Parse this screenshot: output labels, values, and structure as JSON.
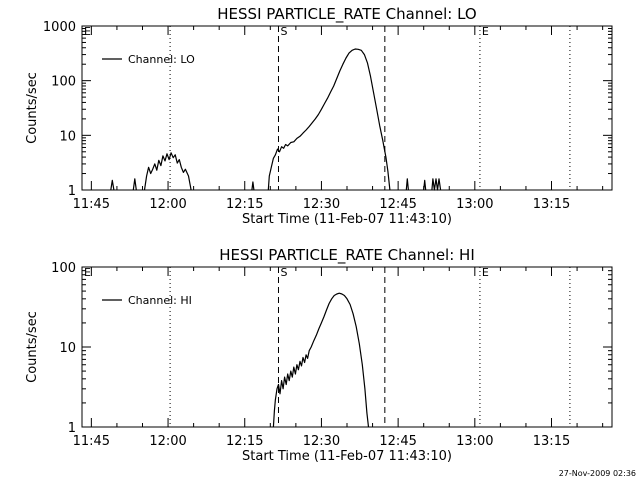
{
  "footer": {
    "timestamp": "27-Nov-2009 02:36"
  },
  "chart_data": [
    {
      "type": "line",
      "title": "HESSI PARTICLE_RATE Channel: LO",
      "xlabel": "Start Time (11-Feb-07 11:43:10)",
      "ylabel": "Counts/sec",
      "y_scale": "log",
      "ylim": [
        1,
        1000
      ],
      "y_ticks": [
        1,
        10,
        100,
        1000
      ],
      "y_tick_labels": [
        "1",
        "10",
        "100",
        "1000"
      ],
      "x_tick_labels": [
        "11:45",
        "12:00",
        "12:15",
        "12:30",
        "12:45",
        "13:00",
        "13:15"
      ],
      "x_tick_minutes": [
        105,
        120,
        135,
        150,
        165,
        180,
        195
      ],
      "xlim_minutes": [
        103.17,
        206.83
      ],
      "legend": {
        "entry": "Channel: LO",
        "placement": "top-left"
      },
      "markers": [
        {
          "label": "E",
          "minute": 103.17,
          "style": "dotted"
        },
        {
          "label": "",
          "minute": 120.4,
          "style": "dotted"
        },
        {
          "label": "S",
          "minute": 141.6,
          "style": "dashed"
        },
        {
          "label": "",
          "minute": 162.4,
          "style": "dashed"
        },
        {
          "label": "E",
          "minute": 181.0,
          "style": "dotted"
        },
        {
          "label": "",
          "minute": 198.6,
          "style": "dotted"
        }
      ],
      "segments": [
        [
          [
            108.8,
            1
          ],
          [
            109.1,
            1.5
          ],
          [
            109.4,
            1
          ]
        ],
        [
          [
            113.2,
            1
          ],
          [
            113.5,
            1.6
          ],
          [
            113.8,
            1
          ]
        ],
        [
          [
            115.4,
            1
          ],
          [
            115.8,
            1.8
          ],
          [
            116.2,
            2.6
          ],
          [
            116.6,
            2.0
          ],
          [
            117.0,
            2.4
          ],
          [
            117.4,
            3.0
          ],
          [
            117.8,
            2.3
          ],
          [
            118.2,
            3.5
          ],
          [
            118.6,
            2.8
          ],
          [
            119.0,
            4.2
          ],
          [
            119.4,
            3.4
          ],
          [
            119.8,
            4.6
          ],
          [
            120.2,
            3.6
          ],
          [
            120.6,
            4.8
          ],
          [
            121.0,
            3.9
          ],
          [
            121.4,
            4.4
          ],
          [
            121.8,
            3.1
          ],
          [
            122.2,
            3.6
          ],
          [
            122.6,
            2.6
          ],
          [
            123.0,
            2.1
          ],
          [
            123.4,
            2.4
          ],
          [
            124.0,
            1.8
          ],
          [
            124.5,
            1
          ]
        ],
        [
          [
            136.4,
            1
          ],
          [
            136.6,
            1.4
          ],
          [
            136.8,
            1
          ]
        ],
        [
          [
            139.6,
            1
          ],
          [
            139.8,
            1.8
          ],
          [
            140.2,
            2.6
          ],
          [
            140.6,
            3.8
          ],
          [
            141.0,
            4.4
          ],
          [
            141.4,
            5.6
          ],
          [
            141.8,
            5.0
          ],
          [
            142.2,
            6.2
          ],
          [
            142.6,
            5.8
          ],
          [
            143.0,
            6.8
          ],
          [
            143.4,
            6.4
          ],
          [
            144.0,
            7.4
          ],
          [
            144.6,
            7.6
          ],
          [
            145.2,
            8.8
          ],
          [
            145.8,
            9.6
          ],
          [
            146.4,
            11
          ],
          [
            147.0,
            12.5
          ],
          [
            147.6,
            14.5
          ],
          [
            148.2,
            17
          ],
          [
            148.8,
            20
          ],
          [
            149.4,
            24
          ],
          [
            150.0,
            30
          ],
          [
            150.6,
            38
          ],
          [
            151.2,
            48
          ],
          [
            151.8,
            62
          ],
          [
            152.4,
            80
          ],
          [
            153.0,
            110
          ],
          [
            153.6,
            150
          ],
          [
            154.2,
            200
          ],
          [
            154.8,
            260
          ],
          [
            155.4,
            320
          ],
          [
            156.0,
            360
          ],
          [
            156.6,
            380
          ],
          [
            157.2,
            375
          ],
          [
            157.8,
            360
          ],
          [
            158.4,
            300
          ],
          [
            159.0,
            210
          ],
          [
            159.6,
            120
          ],
          [
            160.2,
            60
          ],
          [
            160.8,
            30
          ],
          [
            161.4,
            15
          ],
          [
            162.0,
            8
          ],
          [
            162.6,
            4
          ],
          [
            163.0,
            2.2
          ],
          [
            163.4,
            1
          ]
        ],
        [
          [
            166.6,
            1
          ],
          [
            166.8,
            1.6
          ],
          [
            167.0,
            1
          ]
        ],
        [
          [
            170.0,
            1
          ],
          [
            170.2,
            1.5
          ],
          [
            170.4,
            1
          ]
        ],
        [
          [
            171.6,
            1
          ],
          [
            171.8,
            1.6
          ],
          [
            172.1,
            1
          ],
          [
            172.4,
            1.6
          ],
          [
            172.7,
            1
          ],
          [
            173.0,
            1.6
          ],
          [
            173.3,
            1
          ]
        ]
      ]
    },
    {
      "type": "line",
      "title": "HESSI PARTICLE_RATE Channel: HI",
      "xlabel": "Start Time (11-Feb-07 11:43:10)",
      "ylabel": "Counts/sec",
      "y_scale": "log",
      "ylim": [
        1,
        100
      ],
      "y_ticks": [
        1,
        10,
        100
      ],
      "y_tick_labels": [
        "1",
        "10",
        "100"
      ],
      "x_tick_labels": [
        "11:45",
        "12:00",
        "12:15",
        "12:30",
        "12:45",
        "13:00",
        "13:15"
      ],
      "x_tick_minutes": [
        105,
        120,
        135,
        150,
        165,
        180,
        195
      ],
      "xlim_minutes": [
        103.17,
        206.83
      ],
      "legend": {
        "entry": "Channel: HI",
        "placement": "top-left"
      },
      "markers": [
        {
          "label": "E",
          "minute": 103.17,
          "style": "dotted"
        },
        {
          "label": "",
          "minute": 120.4,
          "style": "dotted"
        },
        {
          "label": "S",
          "minute": 141.6,
          "style": "dashed"
        },
        {
          "label": "",
          "minute": 162.4,
          "style": "dashed"
        },
        {
          "label": "E",
          "minute": 181.0,
          "style": "dotted"
        },
        {
          "label": "",
          "minute": 198.6,
          "style": "dotted"
        }
      ],
      "segments": [
        [
          [
            140.6,
            1
          ],
          [
            140.8,
            1.6
          ],
          [
            141.0,
            2.2
          ],
          [
            141.3,
            3.0
          ],
          [
            141.6,
            3.4
          ],
          [
            141.9,
            2.6
          ],
          [
            142.2,
            3.8
          ],
          [
            142.5,
            3.0
          ],
          [
            142.8,
            4.2
          ],
          [
            143.1,
            3.4
          ],
          [
            143.4,
            4.6
          ],
          [
            143.7,
            3.8
          ],
          [
            144.0,
            5.0
          ],
          [
            144.3,
            4.2
          ],
          [
            144.6,
            5.6
          ],
          [
            144.9,
            4.6
          ],
          [
            145.2,
            6.0
          ],
          [
            145.5,
            5.2
          ],
          [
            145.8,
            6.6
          ],
          [
            146.1,
            5.8
          ],
          [
            146.4,
            7.4
          ],
          [
            146.7,
            6.4
          ],
          [
            147.0,
            8.0
          ],
          [
            147.3,
            7.2
          ],
          [
            147.6,
            9.0
          ],
          [
            148.0,
            10
          ],
          [
            148.5,
            12
          ],
          [
            149.0,
            14
          ],
          [
            149.5,
            17
          ],
          [
            150.0,
            20
          ],
          [
            150.5,
            24
          ],
          [
            151.0,
            29
          ],
          [
            151.5,
            35
          ],
          [
            152.0,
            40
          ],
          [
            152.5,
            44
          ],
          [
            153.0,
            46
          ],
          [
            153.5,
            47
          ],
          [
            154.0,
            46
          ],
          [
            154.5,
            44
          ],
          [
            155.0,
            40
          ],
          [
            155.6,
            34
          ],
          [
            156.2,
            26
          ],
          [
            156.8,
            18
          ],
          [
            157.4,
            11
          ],
          [
            158.0,
            6
          ],
          [
            158.5,
            3
          ],
          [
            158.9,
            1.5
          ],
          [
            159.2,
            1
          ]
        ]
      ]
    }
  ]
}
